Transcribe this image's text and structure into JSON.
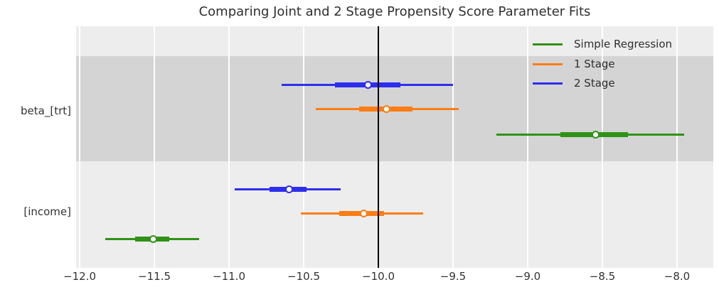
{
  "title": "Comparing Joint and 2 Stage Propensity Score Parameter Fits",
  "colors": {
    "figure_background": "#ffffff",
    "plot_background": "#ededed",
    "band": "#d4d4d4",
    "gridline": "#ffffff",
    "reference_line": "#000000",
    "text": "#333333"
  },
  "chart_data": {
    "type": "forest",
    "title": "Comparing Joint and 2 Stage Propensity Score Parameter Fits",
    "categories": [
      "beta_[trt]",
      "[income]"
    ],
    "xlim": [
      -12.02,
      -7.76
    ],
    "xticks": [
      -12.0,
      -11.5,
      -11.0,
      -10.5,
      -10.0,
      -9.5,
      -9.0,
      -8.5,
      -8.0
    ],
    "xtick_labels": [
      "−12.0",
      "−11.5",
      "−11.0",
      "−10.5",
      "−10.0",
      "−9.5",
      "−9.0",
      "−8.5",
      "−8.0"
    ],
    "reference_line_x": -10.0,
    "grid": "vertical-white",
    "legend_position": "upper right",
    "marker_style": "white-filled circle with series-colored edge",
    "series": [
      {
        "name": "Simple Regression",
        "color": "#2f9216",
        "points": [
          {
            "category": "beta_[trt]",
            "estimate": -8.55,
            "thick_interval": [
              -8.78,
              -8.33
            ],
            "thin_interval": [
              -9.21,
              -7.95
            ]
          },
          {
            "category": "[income]",
            "estimate": -11.51,
            "thick_interval": [
              -11.63,
              -11.4
            ],
            "thin_interval": [
              -11.83,
              -11.2
            ]
          }
        ]
      },
      {
        "name": "1 Stage",
        "color": "#fc7d16",
        "points": [
          {
            "category": "beta_[trt]",
            "estimate": -9.95,
            "thick_interval": [
              -10.13,
              -9.77
            ],
            "thin_interval": [
              -10.42,
              -9.46
            ]
          },
          {
            "category": "[income]",
            "estimate": -10.1,
            "thick_interval": [
              -10.26,
              -9.96
            ],
            "thin_interval": [
              -10.52,
              -9.7
            ]
          }
        ]
      },
      {
        "name": "2 Stage",
        "color": "#2e2eef",
        "points": [
          {
            "category": "beta_[trt]",
            "estimate": -10.07,
            "thick_interval": [
              -10.29,
              -9.85
            ],
            "thin_interval": [
              -10.65,
              -9.5
            ]
          },
          {
            "category": "[income]",
            "estimate": -10.6,
            "thick_interval": [
              -10.73,
              -10.48
            ],
            "thin_interval": [
              -10.96,
              -10.25
            ]
          }
        ]
      }
    ]
  }
}
